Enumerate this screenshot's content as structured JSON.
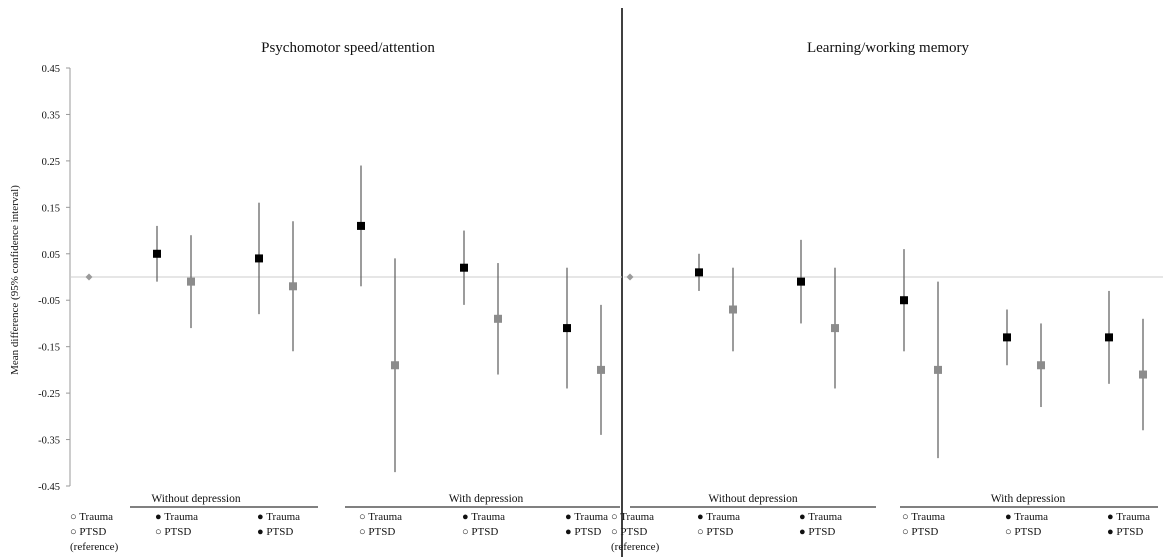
{
  "colors": {
    "black_series": "#000000",
    "gray_series": "#8c8c8c",
    "ref_marker": "#9a9a9a",
    "zero_line": "#cccccc",
    "axis": "#999999",
    "divider": "#000000"
  },
  "y_axis_label": "Mean difference (95% confidence interval)",
  "chart_data": [
    {
      "type": "scatter",
      "title": "Psychomotor speed/attention",
      "ylabel": "Mean difference (95% confidence interval)",
      "ylim": [
        -0.45,
        0.45
      ],
      "yticks": [
        "0.45",
        "0.35",
        "0.25",
        "0.15",
        "0.05",
        "-0.05",
        "-0.15",
        "-0.25",
        "-0.35",
        "-0.45"
      ],
      "groups": [
        {
          "label": "Without depression",
          "categories": [
            "ref",
            "c2",
            "c3"
          ]
        },
        {
          "label": "With depression",
          "categories": [
            "c4",
            "c5",
            "c6"
          ]
        }
      ],
      "categories": [
        {
          "id": "ref",
          "line1": "○ Trauma",
          "line2": "○ PTSD",
          "line3": "(reference)"
        },
        {
          "id": "c2",
          "line1": "● Trauma",
          "line2": "○ PTSD"
        },
        {
          "id": "c3",
          "line1": "● Trauma",
          "line2": "● PTSD"
        },
        {
          "id": "c4",
          "line1": "○ Trauma",
          "line2": "○ PTSD"
        },
        {
          "id": "c5",
          "line1": "● Trauma",
          "line2": "○ PTSD"
        },
        {
          "id": "c6",
          "line1": "● Trauma",
          "line2": "● PTSD"
        }
      ],
      "reference": {
        "category": "ref",
        "value": 0.0
      },
      "points": [
        {
          "category": "c2",
          "series": "black",
          "value": 0.05,
          "low": -0.01,
          "high": 0.11
        },
        {
          "category": "c2",
          "series": "gray",
          "value": -0.01,
          "low": -0.11,
          "high": 0.09
        },
        {
          "category": "c3",
          "series": "black",
          "value": 0.04,
          "low": -0.08,
          "high": 0.16
        },
        {
          "category": "c3",
          "series": "gray",
          "value": -0.02,
          "low": -0.16,
          "high": 0.12
        },
        {
          "category": "c4",
          "series": "black",
          "value": 0.11,
          "low": -0.02,
          "high": 0.24
        },
        {
          "category": "c4",
          "series": "gray",
          "value": -0.19,
          "low": -0.42,
          "high": 0.04
        },
        {
          "category": "c5",
          "series": "black",
          "value": 0.02,
          "low": -0.06,
          "high": 0.1
        },
        {
          "category": "c5",
          "series": "gray",
          "value": -0.09,
          "low": -0.21,
          "high": 0.03
        },
        {
          "category": "c6",
          "series": "black",
          "value": -0.11,
          "low": -0.24,
          "high": 0.02
        },
        {
          "category": "c6",
          "series": "gray",
          "value": -0.2,
          "low": -0.34,
          "high": -0.06
        }
      ]
    },
    {
      "type": "scatter",
      "title": "Learning/working memory",
      "ylim": [
        -0.45,
        0.45
      ],
      "groups": [
        {
          "label": "Without depression",
          "categories": [
            "ref",
            "c2",
            "c3"
          ]
        },
        {
          "label": "With depression",
          "categories": [
            "c4",
            "c5",
            "c6"
          ]
        }
      ],
      "categories": [
        {
          "id": "ref",
          "line1": "○ Trauma",
          "line2": "○ PTSD",
          "line3": "(reference)"
        },
        {
          "id": "c2",
          "line1": "● Trauma",
          "line2": "○ PTSD"
        },
        {
          "id": "c3",
          "line1": "● Trauma",
          "line2": "● PTSD"
        },
        {
          "id": "c4",
          "line1": "○ Trauma",
          "line2": "○ PTSD"
        },
        {
          "id": "c5",
          "line1": "● Trauma",
          "line2": "○ PTSD"
        },
        {
          "id": "c6",
          "line1": "● Trauma",
          "line2": "● PTSD"
        }
      ],
      "reference": {
        "category": "ref",
        "value": 0.0
      },
      "points": [
        {
          "category": "c2",
          "series": "black",
          "value": 0.01,
          "low": -0.03,
          "high": 0.05
        },
        {
          "category": "c2",
          "series": "gray",
          "value": -0.07,
          "low": -0.16,
          "high": 0.02
        },
        {
          "category": "c3",
          "series": "black",
          "value": -0.01,
          "low": -0.1,
          "high": 0.08
        },
        {
          "category": "c3",
          "series": "gray",
          "value": -0.11,
          "low": -0.24,
          "high": 0.02
        },
        {
          "category": "c4",
          "series": "black",
          "value": -0.05,
          "low": -0.16,
          "high": 0.06
        },
        {
          "category": "c4",
          "series": "gray",
          "value": -0.2,
          "low": -0.39,
          "high": -0.01
        },
        {
          "category": "c5",
          "series": "black",
          "value": -0.13,
          "low": -0.19,
          "high": -0.07
        },
        {
          "category": "c5",
          "series": "gray",
          "value": -0.19,
          "low": -0.28,
          "high": -0.1
        },
        {
          "category": "c6",
          "series": "black",
          "value": -0.13,
          "low": -0.23,
          "high": -0.03
        },
        {
          "category": "c6",
          "series": "gray",
          "value": -0.21,
          "low": -0.33,
          "high": -0.09
        }
      ]
    }
  ]
}
